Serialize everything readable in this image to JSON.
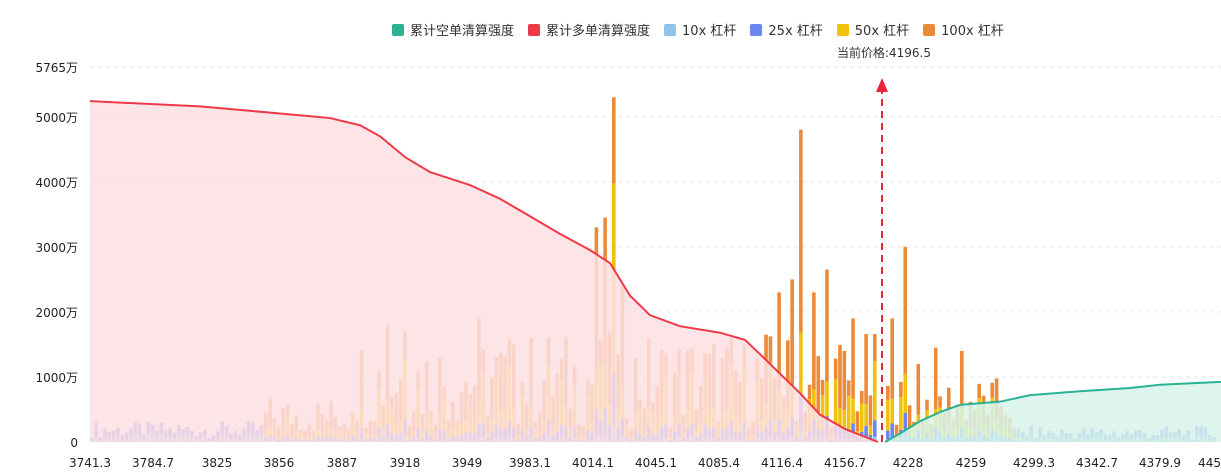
{
  "legend": [
    {
      "label": "累计空单清算强度",
      "color": "#2bb394"
    },
    {
      "label": "累计多单清算强度",
      "color": "#ee3a48"
    },
    {
      "label": "10x 杠杆",
      "color": "#8fc3ea"
    },
    {
      "label": "25x 杠杆",
      "color": "#6a86f0"
    },
    {
      "label": "50x 杠杆",
      "color": "#f2c10c"
    },
    {
      "label": "100x 杠杆",
      "color": "#ec8a38"
    }
  ],
  "current_price_label": "当前价格:4196.5",
  "chart_data": {
    "type": "bar",
    "x_tick_labels": [
      "3741.3",
      "3784.7",
      "3825",
      "3856",
      "3887",
      "3918",
      "3949",
      "3983.1",
      "4014.1",
      "4045.1",
      "4085.4",
      "4116.4",
      "4156.7",
      "4228",
      "4259",
      "4299.3",
      "4342.7",
      "4379.9",
      "445"
    ],
    "y_tick_labels": [
      "0",
      "1000万",
      "2000万",
      "3000万",
      "4000万",
      "5000万",
      "5765万"
    ],
    "ylim": [
      0,
      5765
    ],
    "y_ticks": [
      0,
      1000,
      2000,
      3000,
      4000,
      5000,
      5765
    ],
    "current_price": 4196.5,
    "series_colors": {
      "10x": "#8fc3ea",
      "25x": "#6a86f0",
      "50x": "#f2c10c",
      "100x": "#ec8a38",
      "long_cum": "#ee3a48",
      "short_cum": "#2bb394"
    }
  }
}
